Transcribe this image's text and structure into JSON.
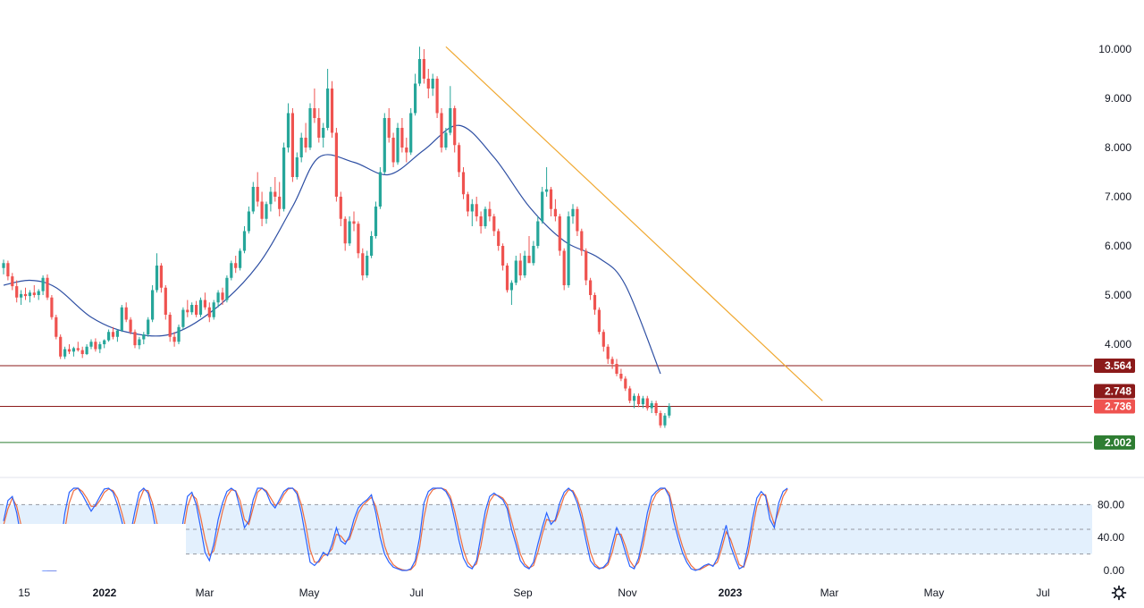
{
  "chart_data": [
    {
      "type": "candlestick",
      "title": "",
      "y_axis": {
        "side": "right",
        "ylim": [
          2.0,
          10.0
        ],
        "ticks": [
          "4.000",
          "5.000",
          "6.000",
          "7.000",
          "8.000",
          "9.000",
          "10.000"
        ]
      },
      "x_axis": {
        "labels": [
          "15",
          "2022",
          "Mar",
          "May",
          "Jul",
          "Sep",
          "Nov",
          "2023",
          "Mar",
          "May",
          "Jul"
        ],
        "bold": [
          "2022",
          "2023"
        ]
      },
      "colors": {
        "up": "#26a69a",
        "down": "#ef5350",
        "ma": "#2e4fa3",
        "trendline": "#f0a830"
      },
      "candles": [
        [
          5.55,
          5.72,
          5.42,
          5.65
        ],
        [
          5.65,
          5.7,
          5.3,
          5.38
        ],
        [
          5.38,
          5.45,
          5.1,
          5.18
        ],
        [
          5.18,
          5.3,
          4.85,
          4.95
        ],
        [
          4.95,
          5.1,
          4.8,
          5.02
        ],
        [
          5.02,
          5.15,
          4.9,
          4.98
        ],
        [
          4.98,
          5.1,
          4.85,
          5.05
        ],
        [
          5.05,
          5.2,
          4.95,
          5.0
        ],
        [
          5.0,
          5.12,
          4.9,
          5.08
        ],
        [
          5.08,
          5.4,
          5.0,
          5.35
        ],
        [
          5.35,
          5.42,
          4.9,
          4.95
        ],
        [
          4.95,
          5.0,
          4.5,
          4.55
        ],
        [
          4.55,
          4.6,
          4.1,
          4.15
        ],
        [
          4.15,
          4.2,
          3.7,
          3.75
        ],
        [
          3.75,
          3.95,
          3.7,
          3.9
        ],
        [
          3.9,
          4.0,
          3.8,
          3.85
        ],
        [
          3.85,
          3.95,
          3.75,
          3.92
        ],
        [
          3.92,
          4.05,
          3.85,
          3.88
        ],
        [
          3.88,
          3.95,
          3.72,
          3.8
        ],
        [
          3.8,
          4.0,
          3.78,
          3.95
        ],
        [
          3.95,
          4.1,
          3.9,
          4.05
        ],
        [
          4.05,
          4.12,
          3.85,
          3.9
        ],
        [
          3.9,
          4.05,
          3.82,
          4.0
        ],
        [
          4.0,
          4.1,
          3.92,
          4.08
        ],
        [
          4.08,
          4.3,
          4.05,
          4.25
        ],
        [
          4.25,
          4.35,
          4.1,
          4.15
        ],
        [
          4.15,
          4.3,
          4.05,
          4.28
        ],
        [
          4.28,
          4.8,
          4.25,
          4.75
        ],
        [
          4.75,
          4.85,
          4.45,
          4.5
        ],
        [
          4.5,
          4.55,
          4.2,
          4.25
        ],
        [
          4.25,
          4.3,
          3.92,
          3.98
        ],
        [
          3.98,
          4.15,
          3.9,
          4.1
        ],
        [
          4.1,
          4.25,
          4.0,
          4.2
        ],
        [
          4.2,
          4.55,
          4.15,
          4.5
        ],
        [
          4.5,
          5.2,
          4.45,
          5.1
        ],
        [
          5.1,
          5.85,
          5.05,
          5.6
        ],
        [
          5.6,
          5.65,
          5.05,
          5.15
        ],
        [
          5.15,
          5.2,
          4.5,
          4.6
        ],
        [
          4.6,
          4.65,
          4.05,
          4.15
        ],
        [
          4.15,
          4.25,
          3.95,
          4.05
        ],
        [
          4.05,
          4.4,
          4.0,
          4.35
        ],
        [
          4.35,
          4.75,
          4.3,
          4.7
        ],
        [
          4.7,
          4.9,
          4.55,
          4.65
        ],
        [
          4.65,
          4.85,
          4.6,
          4.8
        ],
        [
          4.8,
          4.88,
          4.55,
          4.6
        ],
        [
          4.6,
          4.95,
          4.55,
          4.9
        ],
        [
          4.9,
          5.05,
          4.7,
          4.75
        ],
        [
          4.75,
          4.85,
          4.45,
          4.55
        ],
        [
          4.55,
          4.9,
          4.5,
          4.85
        ],
        [
          4.85,
          5.1,
          4.75,
          5.05
        ],
        [
          5.05,
          5.15,
          4.8,
          4.9
        ],
        [
          4.9,
          5.4,
          4.85,
          5.35
        ],
        [
          5.35,
          5.7,
          5.3,
          5.65
        ],
        [
          5.65,
          5.8,
          5.45,
          5.55
        ],
        [
          5.55,
          5.95,
          5.5,
          5.9
        ],
        [
          5.9,
          6.4,
          5.85,
          6.3
        ],
        [
          6.3,
          6.8,
          6.25,
          6.7
        ],
        [
          6.7,
          7.3,
          6.65,
          7.2
        ],
        [
          7.2,
          7.5,
          6.8,
          6.9
        ],
        [
          6.9,
          7.1,
          6.4,
          6.55
        ],
        [
          6.55,
          6.9,
          6.45,
          6.85
        ],
        [
          6.85,
          7.2,
          6.7,
          7.1
        ],
        [
          7.1,
          7.4,
          6.9,
          7.0
        ],
        [
          7.0,
          7.3,
          6.6,
          6.75
        ],
        [
          6.75,
          8.1,
          6.7,
          8.0
        ],
        [
          8.0,
          8.9,
          7.9,
          8.7
        ],
        [
          8.7,
          8.8,
          7.3,
          7.4
        ],
        [
          7.4,
          7.9,
          7.35,
          7.8
        ],
        [
          7.8,
          8.3,
          7.7,
          8.2
        ],
        [
          8.2,
          8.5,
          7.9,
          8.0
        ],
        [
          8.0,
          8.9,
          7.95,
          8.8
        ],
        [
          8.8,
          9.2,
          8.5,
          8.6
        ],
        [
          8.6,
          8.8,
          8.1,
          8.2
        ],
        [
          8.2,
          8.5,
          8.0,
          8.4
        ],
        [
          8.4,
          9.6,
          8.35,
          9.2
        ],
        [
          9.2,
          9.35,
          8.2,
          8.3
        ],
        [
          8.3,
          8.4,
          6.9,
          7.0
        ],
        [
          7.0,
          7.1,
          6.4,
          6.55
        ],
        [
          6.55,
          6.6,
          5.9,
          6.05
        ],
        [
          6.05,
          6.6,
          6.0,
          6.5
        ],
        [
          6.5,
          6.7,
          6.3,
          6.45
        ],
        [
          6.45,
          6.5,
          5.75,
          5.85
        ],
        [
          5.85,
          5.95,
          5.3,
          5.4
        ],
        [
          5.4,
          5.9,
          5.35,
          5.8
        ],
        [
          5.8,
          6.3,
          5.75,
          6.2
        ],
        [
          6.2,
          6.9,
          6.15,
          6.8
        ],
        [
          6.8,
          7.6,
          6.75,
          7.5
        ],
        [
          7.5,
          8.7,
          7.45,
          8.6
        ],
        [
          8.6,
          8.8,
          8.1,
          8.2
        ],
        [
          8.2,
          8.3,
          7.6,
          7.7
        ],
        [
          7.7,
          8.5,
          7.65,
          8.4
        ],
        [
          8.4,
          8.6,
          7.9,
          8.0
        ],
        [
          8.0,
          8.2,
          7.7,
          7.9
        ],
        [
          7.9,
          8.8,
          7.85,
          8.7
        ],
        [
          8.7,
          9.5,
          8.65,
          9.3
        ],
        [
          9.3,
          10.05,
          9.25,
          9.8
        ],
        [
          9.8,
          10.0,
          9.3,
          9.4
        ],
        [
          9.4,
          9.6,
          9.0,
          9.2
        ],
        [
          9.2,
          9.5,
          9.05,
          9.4
        ],
        [
          9.4,
          9.45,
          8.6,
          8.7
        ],
        [
          8.7,
          8.8,
          7.9,
          8.0
        ],
        [
          8.0,
          8.4,
          7.95,
          8.3
        ],
        [
          8.3,
          9.25,
          8.25,
          8.8
        ],
        [
          8.8,
          8.85,
          7.9,
          8.05
        ],
        [
          8.05,
          8.1,
          7.4,
          7.5
        ],
        [
          7.5,
          7.6,
          6.95,
          7.05
        ],
        [
          7.05,
          7.1,
          6.6,
          6.7
        ],
        [
          6.7,
          6.95,
          6.4,
          6.85
        ],
        [
          6.85,
          7.0,
          6.5,
          6.6
        ],
        [
          6.6,
          6.7,
          6.25,
          6.4
        ],
        [
          6.4,
          6.8,
          6.35,
          6.75
        ],
        [
          6.75,
          6.9,
          6.5,
          6.6
        ],
        [
          6.6,
          6.65,
          6.2,
          6.3
        ],
        [
          6.3,
          6.35,
          5.9,
          6.0
        ],
        [
          6.0,
          6.05,
          5.5,
          5.6
        ],
        [
          5.6,
          5.65,
          5.05,
          5.1
        ],
        [
          5.1,
          5.3,
          4.8,
          5.25
        ],
        [
          5.25,
          5.8,
          5.2,
          5.7
        ],
        [
          5.7,
          5.85,
          5.3,
          5.4
        ],
        [
          5.4,
          5.9,
          5.35,
          5.8
        ],
        [
          5.8,
          6.2,
          5.7,
          5.65
        ],
        [
          5.65,
          6.1,
          5.6,
          6.0
        ],
        [
          6.0,
          6.6,
          5.95,
          6.5
        ],
        [
          6.5,
          7.2,
          6.45,
          7.1
        ],
        [
          7.1,
          7.6,
          7.0,
          7.15
        ],
        [
          7.15,
          7.2,
          6.6,
          6.75
        ],
        [
          6.75,
          6.95,
          6.5,
          6.6
        ],
        [
          6.6,
          6.65,
          5.8,
          5.9
        ],
        [
          5.9,
          5.95,
          5.1,
          5.2
        ],
        [
          5.2,
          6.7,
          5.15,
          6.6
        ],
        [
          6.6,
          6.85,
          6.45,
          6.75
        ],
        [
          6.75,
          6.8,
          6.2,
          6.3
        ],
        [
          6.3,
          6.35,
          5.8,
          5.9
        ],
        [
          5.9,
          5.95,
          5.2,
          5.3
        ],
        [
          5.3,
          5.35,
          4.9,
          5.0
        ],
        [
          5.0,
          5.05,
          4.6,
          4.7
        ],
        [
          4.7,
          4.75,
          4.2,
          4.25
        ],
        [
          4.25,
          4.3,
          3.85,
          3.95
        ],
        [
          3.95,
          4.0,
          3.6,
          3.7
        ],
        [
          3.7,
          3.75,
          3.5,
          3.6
        ],
        [
          3.6,
          3.7,
          3.35,
          3.4
        ],
        [
          3.4,
          3.5,
          3.25,
          3.3
        ],
        [
          3.3,
          3.35,
          3.05,
          3.1
        ],
        [
          3.1,
          3.15,
          2.8,
          2.85
        ],
        [
          2.85,
          3.0,
          2.7,
          2.95
        ],
        [
          2.95,
          3.0,
          2.72,
          2.78
        ],
        [
          2.78,
          2.95,
          2.7,
          2.9
        ],
        [
          2.9,
          2.95,
          2.65,
          2.7
        ],
        [
          2.7,
          2.85,
          2.6,
          2.8
        ],
        [
          2.8,
          2.85,
          2.55,
          2.6
        ],
        [
          2.6,
          2.65,
          2.3,
          2.35
        ],
        [
          2.35,
          2.6,
          2.3,
          2.55
        ],
        [
          2.55,
          2.8,
          2.5,
          2.74
        ]
      ],
      "moving_average": {
        "x": [
          0,
          6,
          12,
          20,
          28,
          38,
          48,
          58,
          66,
          72,
          80,
          88,
          96,
          104,
          112,
          120,
          128,
          136,
          142,
          150
        ],
        "y": [
          5.2,
          5.3,
          5.15,
          4.55,
          4.25,
          4.2,
          4.7,
          5.6,
          6.8,
          7.8,
          7.7,
          7.45,
          7.95,
          8.45,
          7.8,
          6.8,
          6.1,
          5.75,
          5.2,
          3.4
        ]
      },
      "trendline": {
        "from": [
          101,
          10.05
        ],
        "to": [
          187,
          2.85
        ]
      },
      "levels": [
        {
          "value": 3.564,
          "label": "3.564",
          "line_color": "#8b1a1a",
          "badge_color": "#8b1a1a"
        },
        {
          "value": 2.748,
          "label": "2.748",
          "line_color": "",
          "badge_color": "#8b1a1a"
        },
        {
          "value": 2.736,
          "label": "2.736",
          "line_color": "#8b1a1a",
          "badge_color": "#ef5350"
        },
        {
          "value": 2.002,
          "label": "2.002",
          "line_color": "#2e7d32",
          "badge_color": "#2e7d32"
        }
      ]
    },
    {
      "type": "line",
      "title": "",
      "ylim": [
        0,
        100
      ],
      "ticks": [
        "80.00",
        "40.00",
        "0.00"
      ],
      "band": [
        20,
        80
      ],
      "colors": {
        "k": "#2962ff",
        "d": "#ef6c3e",
        "band": "#e3f0fd"
      },
      "k": [
        60,
        85,
        90,
        70,
        40,
        22,
        15,
        8,
        2,
        0,
        0,
        0,
        0,
        30,
        70,
        95,
        100,
        100,
        92,
        82,
        72,
        80,
        90,
        99,
        100,
        95,
        80,
        60,
        38,
        45,
        72,
        95,
        100,
        94,
        72,
        42,
        22,
        10,
        4,
        2,
        22,
        60,
        90,
        95,
        80,
        52,
        22,
        12,
        32,
        62,
        82,
        96,
        100,
        96,
        76,
        52,
        60,
        86,
        100,
        100,
        95,
        82,
        76,
        86,
        96,
        100,
        100,
        93,
        70,
        40,
        10,
        6,
        12,
        22,
        18,
        32,
        52,
        36,
        32,
        42,
        62,
        76,
        82,
        86,
        92,
        70,
        40,
        20,
        10,
        4,
        2,
        0,
        0,
        2,
        12,
        40,
        82,
        96,
        100,
        100,
        100,
        96,
        86,
        62,
        36,
        15,
        5,
        2,
        12,
        42,
        72,
        90,
        94,
        90,
        86,
        75,
        50,
        32,
        12,
        5,
        2,
        10,
        32,
        52,
        70,
        56,
        62,
        82,
        95,
        100,
        95,
        82,
        62,
        36,
        12,
        5,
        2,
        4,
        10,
        32,
        52,
        40,
        22,
        5,
        2,
        15,
        40,
        70,
        90,
        96,
        100,
        100,
        90,
        60,
        40,
        22,
        10,
        2,
        0,
        2,
        6,
        8,
        5,
        15,
        35,
        55,
        30,
        15,
        2,
        5,
        30,
        62,
        88,
        96,
        90,
        62,
        52,
        82,
        96,
        100
      ],
      "d": [
        55,
        75,
        88,
        78,
        55,
        32,
        20,
        12,
        5,
        2,
        0,
        0,
        0,
        15,
        50,
        82,
        97,
        100,
        96,
        88,
        78,
        78,
        85,
        95,
        99,
        97,
        88,
        70,
        50,
        44,
        60,
        85,
        98,
        97,
        82,
        58,
        35,
        18,
        8,
        4,
        14,
        45,
        78,
        92,
        87,
        65,
        38,
        18,
        24,
        48,
        72,
        90,
        98,
        97,
        85,
        62,
        56,
        76,
        95,
        100,
        97,
        88,
        79,
        82,
        92,
        99,
        100,
        96,
        80,
        55,
        25,
        10,
        10,
        18,
        20,
        26,
        44,
        42,
        35,
        38,
        54,
        70,
        79,
        84,
        89,
        78,
        55,
        30,
        15,
        7,
        3,
        1,
        0,
        1,
        7,
        28,
        65,
        90,
        98,
        100,
        100,
        98,
        90,
        72,
        48,
        25,
        10,
        4,
        8,
        30,
        60,
        84,
        92,
        91,
        88,
        80,
        60,
        40,
        20,
        8,
        3,
        6,
        22,
        44,
        62,
        60,
        60,
        74,
        90,
        98,
        97,
        87,
        70,
        46,
        22,
        8,
        3,
        3,
        7,
        22,
        44,
        44,
        30,
        12,
        4,
        10,
        30,
        58,
        82,
        93,
        98,
        100,
        94,
        72,
        48,
        30,
        15,
        6,
        1,
        1,
        4,
        7,
        6,
        10,
        27,
        47,
        38,
        22,
        7,
        4,
        20,
        50,
        78,
        92,
        92,
        72,
        56,
        72,
        90,
        99
      ]
    }
  ]
}
